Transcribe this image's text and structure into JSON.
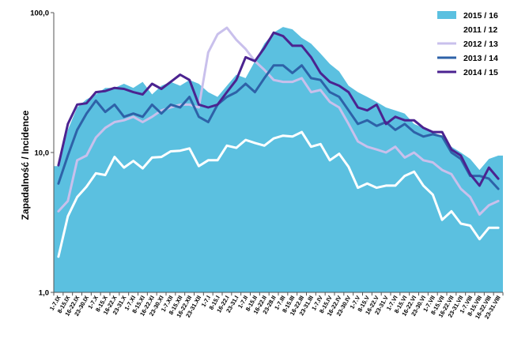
{
  "chart_data": {
    "type": "line",
    "title": "",
    "xlabel": "",
    "ylabel": "Zapadalność  /  Incidence",
    "yscale": "log",
    "ylim": [
      1,
      100
    ],
    "yticks": [
      "1,0",
      "10,0",
      "100,0"
    ],
    "ytick_values": [
      1,
      10,
      100
    ],
    "grid": false,
    "legend_position": "top-right",
    "categories": [
      "1-7.IX",
      "8-15.IX",
      "16-22.IX",
      "23-30.IX",
      "1-7.X",
      "8-15.X",
      "16-22.X",
      "23-31.X",
      "1-7.XI",
      "8-15.XI",
      "16-22.XI",
      "23-30.XI",
      "1-7.XII",
      "8-15.XII",
      "16-22.XII",
      "23-31.XII",
      "1-7.I",
      "8-15.I",
      "16-22.I",
      "23-31.I",
      "1-7.II",
      "8-15.II",
      "16-22.II",
      "23-28.II",
      "1-7.III",
      "8-15.III",
      "16-22.III",
      "23-31.III",
      "1-7.IV",
      "8-15.IV",
      "16-22.IV",
      "23-30.IV",
      "1-7.V",
      "8-15.V",
      "16-22.V",
      "23-31.V",
      "1-7.VI",
      "8-15.VI",
      "16-22.VI",
      "23-30.VI",
      "1-7.VII",
      "8-15.VII",
      "16-22.VII",
      "23-31.VII",
      "1-7.VIII",
      "8-15.VIII",
      "16-22.VIII",
      "23-31.VIII"
    ],
    "series": [
      {
        "name": "2015 / 16",
        "style": "area",
        "color": "#5bc0e0",
        "values": [
          8.0,
          14.5,
          21,
          24,
          26,
          29,
          29,
          31,
          29,
          32,
          26,
          30,
          32,
          30,
          33,
          31,
          27,
          25,
          30,
          36,
          34,
          45,
          60,
          72,
          79,
          76,
          66,
          60,
          51,
          43,
          38,
          30,
          27,
          25,
          23,
          21,
          20,
          19,
          16,
          15,
          14,
          13,
          11,
          10,
          9.0,
          7.5,
          9.0,
          9.5
        ]
      },
      {
        "name": "2011 / 12",
        "style": "line",
        "color": "#ffffff",
        "values": [
          1.8,
          3.5,
          4.8,
          5.7,
          7.1,
          6.9,
          9.3,
          7.8,
          8.7,
          7.7,
          9.2,
          9.3,
          10.2,
          10.3,
          10.7,
          8.0,
          8.8,
          8.8,
          11.2,
          10.8,
          12.3,
          11.7,
          11.2,
          12.6,
          13.2,
          13.0,
          14.0,
          11.0,
          11.5,
          8.8,
          9.8,
          7.9,
          5.6,
          6.0,
          5.6,
          5.8,
          5.8,
          6.8,
          7.3,
          5.8,
          5.0,
          3.3,
          3.8,
          3.1,
          3.0,
          2.4,
          2.9,
          2.9
        ]
      },
      {
        "name": "2012 / 13",
        "style": "line",
        "color": "#c9c0ec",
        "values": [
          3.8,
          4.5,
          8.8,
          9.5,
          12.8,
          15,
          16.5,
          17,
          18,
          16.5,
          18,
          20,
          21,
          22,
          22,
          21,
          52,
          70,
          78,
          64,
          55,
          45,
          39,
          33,
          32,
          32,
          34,
          27,
          28,
          23,
          21,
          16,
          12,
          11,
          10.5,
          10,
          11,
          9.2,
          10,
          8.8,
          8.5,
          7.5,
          7,
          5.5,
          4.8,
          3.6,
          4.2,
          4.5
        ]
      },
      {
        "name": "2013 / 14",
        "style": "line",
        "color": "#2e62a8",
        "values": [
          6.0,
          9.5,
          14.5,
          19,
          23.5,
          19.5,
          22,
          18,
          19,
          18,
          22,
          19,
          22,
          21,
          25,
          18,
          16.5,
          22,
          25,
          27,
          31,
          27,
          34,
          42,
          42,
          37,
          42,
          34,
          33,
          27,
          25,
          20,
          16,
          17,
          15.5,
          16.5,
          14.5,
          16,
          14,
          13,
          13.5,
          13,
          10,
          9.0,
          6.8,
          6.8,
          6.5,
          5.5
        ]
      },
      {
        "name": "2014 / 15",
        "style": "line",
        "color": "#4b2390",
        "values": [
          8.1,
          16,
          22,
          22.5,
          27,
          27.5,
          29,
          28.5,
          27,
          26,
          31,
          28.5,
          32,
          36,
          33,
          22,
          21,
          22,
          27,
          33,
          48,
          45,
          56,
          72,
          68,
          58,
          58,
          48,
          37,
          32,
          30,
          27,
          21,
          20,
          22,
          16,
          18,
          17,
          17,
          15,
          14,
          14,
          10.5,
          9.5,
          7.0,
          5.8,
          7.8,
          6.5
        ]
      }
    ]
  }
}
